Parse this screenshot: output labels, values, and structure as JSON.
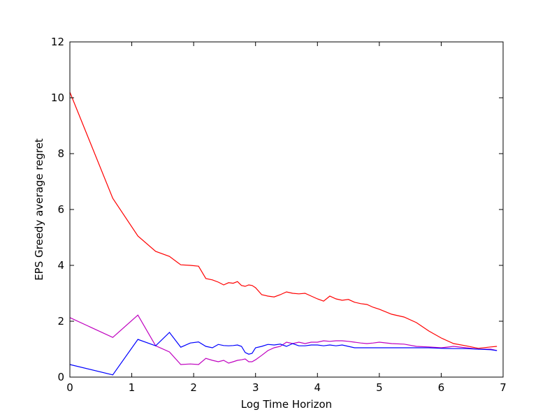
{
  "chart_data": {
    "type": "line",
    "xlabel": "Log Time Horizon",
    "ylabel": "EPS Greedy average regret",
    "x": [
      0,
      0.693,
      1.099,
      1.386,
      1.609,
      1.792,
      1.946,
      2.079,
      2.197,
      2.303,
      2.398,
      2.485,
      2.565,
      2.639,
      2.708,
      2.773,
      2.833,
      2.89,
      2.944,
      3.0,
      3.1,
      3.2,
      3.3,
      3.4,
      3.5,
      3.6,
      3.7,
      3.8,
      3.9,
      4.0,
      4.1,
      4.2,
      4.3,
      4.4,
      4.5,
      4.6,
      4.7,
      4.8,
      4.9,
      5.0,
      5.2,
      5.4,
      5.6,
      5.8,
      6.0,
      6.2,
      6.4,
      6.6,
      6.8,
      6.9
    ],
    "series": [
      {
        "color": "#ff0000",
        "values": [
          10.2,
          6.4,
          5.05,
          4.5,
          4.32,
          4.02,
          4.0,
          3.97,
          3.53,
          3.48,
          3.4,
          3.3,
          3.38,
          3.36,
          3.42,
          3.28,
          3.25,
          3.3,
          3.28,
          3.2,
          2.95,
          2.9,
          2.87,
          2.95,
          3.05,
          3.0,
          2.98,
          3.0,
          2.9,
          2.8,
          2.72,
          2.9,
          2.8,
          2.75,
          2.78,
          2.68,
          2.63,
          2.6,
          2.5,
          2.43,
          2.25,
          2.15,
          1.95,
          1.65,
          1.4,
          1.2,
          1.12,
          1.03,
          1.08,
          1.1
        ]
      },
      {
        "color": "#bf00bf",
        "values": [
          2.13,
          1.42,
          2.22,
          1.12,
          0.9,
          0.45,
          0.47,
          0.45,
          0.67,
          0.6,
          0.55,
          0.6,
          0.5,
          0.55,
          0.6,
          0.62,
          0.65,
          0.55,
          0.55,
          0.62,
          0.78,
          0.95,
          1.05,
          1.1,
          1.25,
          1.2,
          1.25,
          1.2,
          1.25,
          1.25,
          1.3,
          1.28,
          1.3,
          1.3,
          1.28,
          1.25,
          1.22,
          1.2,
          1.22,
          1.25,
          1.2,
          1.18,
          1.1,
          1.08,
          1.05,
          1.1,
          1.05,
          1.0,
          1.0,
          0.95
        ]
      },
      {
        "color": "#0000ff",
        "values": [
          0.45,
          0.08,
          1.35,
          1.12,
          1.6,
          1.07,
          1.22,
          1.26,
          1.1,
          1.05,
          1.17,
          1.13,
          1.12,
          1.13,
          1.15,
          1.1,
          0.88,
          0.82,
          0.85,
          1.05,
          1.1,
          1.17,
          1.15,
          1.18,
          1.1,
          1.2,
          1.12,
          1.12,
          1.15,
          1.15,
          1.12,
          1.15,
          1.12,
          1.15,
          1.1,
          1.05,
          1.05,
          1.05,
          1.05,
          1.05,
          1.05,
          1.05,
          1.05,
          1.05,
          1.03,
          1.02,
          1.02,
          1.0,
          0.98,
          0.95
        ]
      }
    ],
    "xlim": [
      0,
      7
    ],
    "xticks": [
      0,
      1,
      2,
      3,
      4,
      5,
      6,
      7
    ],
    "ylim": [
      0,
      12
    ],
    "yticks": [
      0,
      2,
      4,
      6,
      8,
      10,
      12
    ],
    "grid": false
  }
}
